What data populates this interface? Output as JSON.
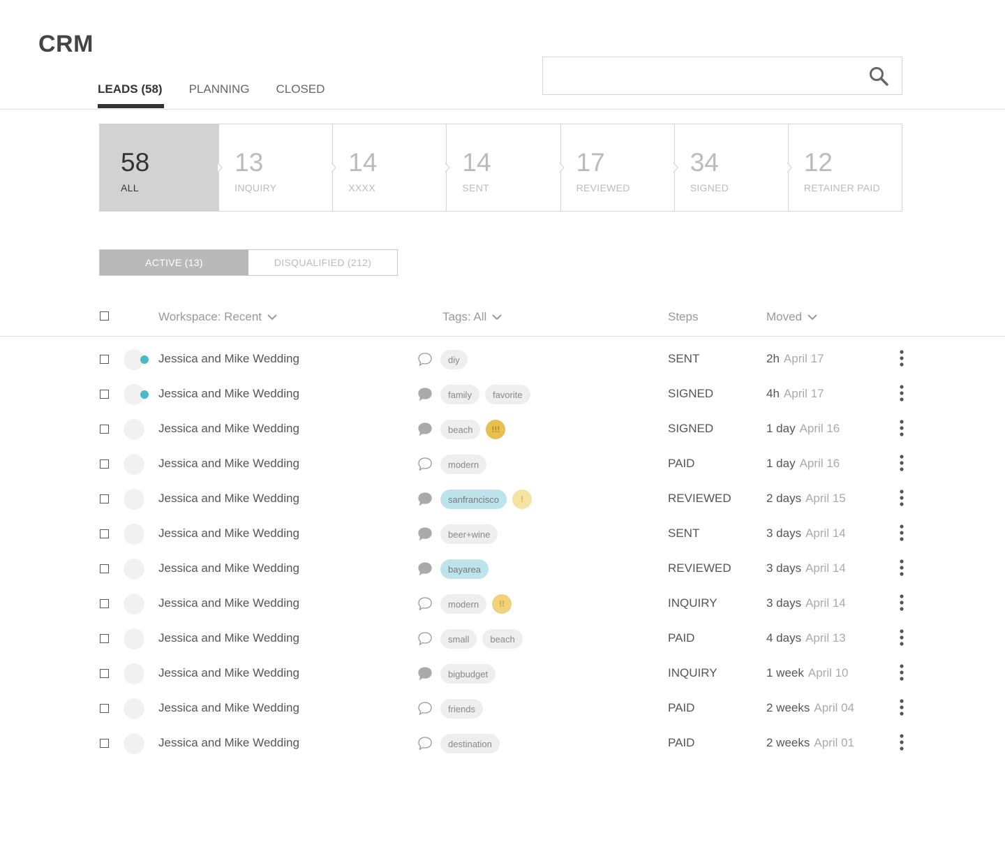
{
  "app": {
    "title": "CRM"
  },
  "tabs": [
    {
      "label": "LEADS (58)",
      "active": true
    },
    {
      "label": "PLANNING",
      "active": false
    },
    {
      "label": "CLOSED",
      "active": false
    }
  ],
  "search": {
    "value": "",
    "placeholder": "",
    "icon": "search-icon"
  },
  "stages": [
    {
      "count": "58",
      "label": "ALL",
      "active": true
    },
    {
      "count": "13",
      "label": "INQUIRY"
    },
    {
      "count": "14",
      "label": "XXXX"
    },
    {
      "count": "14",
      "label": "SENT"
    },
    {
      "count": "17",
      "label": "REVIEWED"
    },
    {
      "count": "34",
      "label": "SIGNED"
    },
    {
      "count": "12",
      "label": "RETAINER PAID"
    }
  ],
  "filter": {
    "active": "ACTIVE (13)",
    "disqualified": "DISQUALIFIED (212)"
  },
  "columns": {
    "workspace": "Workspace: Recent",
    "tags": "Tags: All",
    "steps": "Steps",
    "moved": "Moved"
  },
  "colors": {
    "accent_dot": "#4bb8c8",
    "teal_tag": "#bde4ea",
    "warning": "#e8c04f"
  },
  "rows": [
    {
      "title": "Jessica and Mike Wedding",
      "unread": true,
      "comment": "outline",
      "tags": [
        {
          "t": "diy"
        }
      ],
      "badge": null,
      "step": "SENT",
      "ago": "2h",
      "date": "April 17"
    },
    {
      "title": "Jessica and Mike Wedding",
      "unread": true,
      "comment": "filled",
      "tags": [
        {
          "t": "family"
        },
        {
          "t": "favorite"
        }
      ],
      "badge": null,
      "step": "SIGNED",
      "ago": "4h",
      "date": "April 17"
    },
    {
      "title": "Jessica and Mike Wedding",
      "unread": false,
      "comment": "filled",
      "tags": [
        {
          "t": "beach"
        }
      ],
      "badge": {
        "text": "!!!",
        "level": 3
      },
      "step": "SIGNED",
      "ago": "1 day",
      "date": "April 16"
    },
    {
      "title": "Jessica and Mike Wedding",
      "unread": false,
      "comment": "outline",
      "tags": [
        {
          "t": "modern"
        }
      ],
      "badge": null,
      "step": "PAID",
      "ago": "1 day",
      "date": "April 16"
    },
    {
      "title": "Jessica and Mike Wedding",
      "unread": false,
      "comment": "filled",
      "tags": [
        {
          "t": "sanfrancisco",
          "teal": true
        }
      ],
      "badge": {
        "text": "!",
        "level": 1
      },
      "step": "REVIEWED",
      "ago": "2 days",
      "date": "April 15"
    },
    {
      "title": "Jessica and Mike Wedding",
      "unread": false,
      "comment": "filled",
      "tags": [
        {
          "t": "beer+wine"
        }
      ],
      "badge": null,
      "step": "SENT",
      "ago": "3 days",
      "date": "April 14"
    },
    {
      "title": "Jessica and Mike Wedding",
      "unread": false,
      "comment": "filled",
      "tags": [
        {
          "t": "bayarea",
          "teal": true
        }
      ],
      "badge": null,
      "step": "REVIEWED",
      "ago": "3 days",
      "date": "April 14"
    },
    {
      "title": "Jessica and Mike Wedding",
      "unread": false,
      "comment": "outline",
      "tags": [
        {
          "t": "modern"
        }
      ],
      "badge": {
        "text": "!!",
        "level": 2
      },
      "step": "INQUIRY",
      "ago": "3 days",
      "date": "April 14"
    },
    {
      "title": "Jessica and Mike Wedding",
      "unread": false,
      "comment": "outline",
      "tags": [
        {
          "t": "small"
        },
        {
          "t": "beach"
        }
      ],
      "badge": null,
      "step": "PAID",
      "ago": "4 days",
      "date": "April 13"
    },
    {
      "title": "Jessica and Mike Wedding",
      "unread": false,
      "comment": "filled",
      "tags": [
        {
          "t": "bigbudget"
        }
      ],
      "badge": null,
      "step": "INQUIRY",
      "ago": "1 week",
      "date": "April 10"
    },
    {
      "title": "Jessica and Mike Wedding",
      "unread": false,
      "comment": "outline",
      "tags": [
        {
          "t": "friends"
        }
      ],
      "badge": null,
      "step": "PAID",
      "ago": "2 weeks",
      "date": "April 04"
    },
    {
      "title": "Jessica and Mike Wedding",
      "unread": false,
      "comment": "outline",
      "tags": [
        {
          "t": "destination"
        }
      ],
      "badge": null,
      "step": "PAID",
      "ago": "2 weeks",
      "date": "April 01"
    }
  ]
}
